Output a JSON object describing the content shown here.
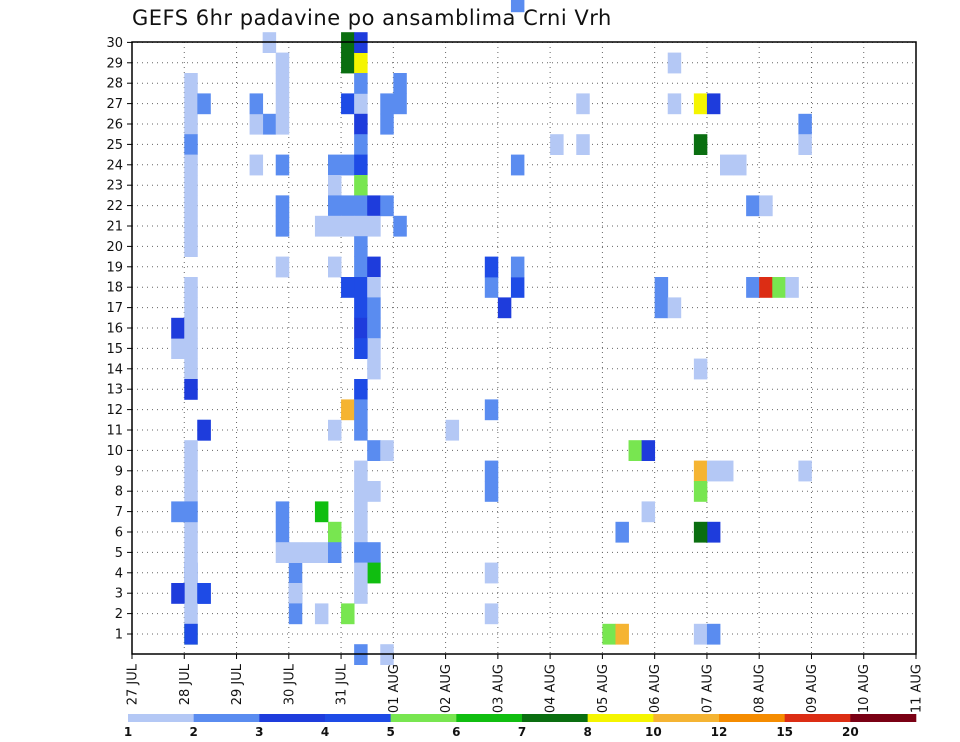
{
  "title": "GEFS 6hr padavine po ansamblima Crni Vrh",
  "chart_data": {
    "type": "heatmap",
    "title": "GEFS 6hr padavine po ansamblima Crni Vrh",
    "x_tick_labels": [
      "27 JUL",
      "28 JUL",
      "29 JUL",
      "30 JUL",
      "31 JUL",
      "01 AUG",
      "02 AUG",
      "03 AUG",
      "04 AUG",
      "05 AUG",
      "06 AUG",
      "07 AUG",
      "08 AUG",
      "09 AUG",
      "10 AUG",
      "11 AUG"
    ],
    "y_tick_labels": [
      "1",
      "2",
      "3",
      "4",
      "5",
      "6",
      "7",
      "8",
      "9",
      "10",
      "11",
      "12",
      "13",
      "14",
      "15",
      "16",
      "17",
      "18",
      "19",
      "20",
      "21",
      "22",
      "23",
      "24",
      "25",
      "26",
      "27",
      "28",
      "29",
      "30"
    ],
    "x_unit": "6-hour step from 27 JUL 00Z",
    "ylim": [
      1,
      30
    ],
    "grid": true,
    "colorbar": {
      "tick_labels": [
        "1",
        "2",
        "3",
        "4",
        "5",
        "6",
        "7",
        "8",
        "10",
        "12",
        "15",
        "20"
      ],
      "levels": [
        1,
        2,
        3,
        4,
        5,
        6,
        7,
        8,
        10,
        12,
        15,
        20
      ],
      "colors": [
        "#b4c8f5",
        "#5a8cf0",
        "#1e3cdc",
        "#1e4be6",
        "#78e650",
        "#10be10",
        "#0a6e10",
        "#f5f500",
        "#f5b432",
        "#f58c00",
        "#dc2d14",
        "#7a0014"
      ]
    },
    "cells": [
      [
        4,
        4,
        1
      ],
      [
        4,
        5,
        0
      ],
      [
        4,
        6,
        0
      ],
      [
        4,
        3,
        0
      ],
      [
        4,
        4,
        0
      ],
      [
        3,
        3,
        2
      ],
      [
        3,
        7,
        1
      ],
      [
        4,
        1,
        4
      ],
      [
        27,
        4,
        0
      ],
      [
        27,
        8,
        1
      ],
      [
        27,
        9,
        1
      ],
      [
        27,
        12,
        1
      ],
      [
        27,
        18,
        1
      ],
      [
        27,
        19,
        3
      ],
      [
        28,
        17,
        2
      ],
      [
        29,
        18,
        3
      ],
      [
        29,
        19,
        1
      ],
      [
        29,
        32,
        1
      ],
      [
        29,
        24,
        1
      ],
      [
        4,
        9,
        0
      ],
      [
        4,
        14,
        0
      ],
      [
        5,
        11,
        0
      ],
      [
        5,
        11,
        1
      ],
      [
        5,
        11,
        2
      ],
      [
        5,
        3,
        2
      ],
      [
        5,
        3,
        3
      ],
      [
        4,
        13,
        2
      ],
      [
        3,
        15,
        0
      ],
      [
        3,
        16,
        2
      ],
      [
        4,
        22,
        0
      ],
      [
        4,
        26,
        0
      ],
      [
        4,
        25,
        1
      ],
      [
        4,
        27,
        0
      ],
      [
        4,
        28,
        0
      ],
      [
        5,
        27,
        1
      ],
      [
        4,
        24,
        0
      ],
      [
        4,
        23,
        0
      ],
      [
        4,
        10,
        0
      ],
      [
        4,
        18,
        0
      ],
      [
        4,
        21,
        0
      ],
      [
        4,
        20,
        0
      ],
      [
        4,
        16,
        0
      ],
      [
        4,
        15,
        0
      ],
      [
        4,
        17,
        0
      ],
      [
        4,
        8,
        0
      ],
      [
        4,
        7,
        1
      ],
      [
        4,
        2,
        0
      ],
      [
        4,
        1,
        3
      ],
      [
        10,
        30,
        0
      ],
      [
        12,
        4,
        1
      ],
      [
        12,
        3,
        1
      ],
      [
        12,
        5,
        0
      ],
      [
        12,
        3,
        0
      ],
      [
        12,
        2,
        1
      ],
      [
        10,
        26,
        1
      ],
      [
        9,
        26,
        0
      ],
      [
        9,
        27,
        1
      ],
      [
        9,
        24,
        0
      ],
      [
        11,
        29,
        0
      ],
      [
        11,
        28,
        0
      ],
      [
        11,
        27,
        0
      ],
      [
        11,
        26,
        0
      ],
      [
        11,
        22,
        0
      ],
      [
        11,
        21,
        0
      ],
      [
        11,
        22,
        1
      ],
      [
        11,
        24,
        1
      ],
      [
        11,
        21,
        1
      ],
      [
        11,
        19,
        0
      ],
      [
        11,
        6,
        1
      ],
      [
        11,
        5,
        0
      ],
      [
        11,
        7,
        1
      ],
      [
        16,
        30,
        6
      ],
      [
        16,
        29,
        6
      ],
      [
        17,
        29,
        7
      ],
      [
        17,
        30,
        2
      ],
      [
        16,
        27,
        3
      ],
      [
        17,
        27,
        0
      ],
      [
        17,
        28,
        1
      ],
      [
        17,
        26,
        2
      ],
      [
        17,
        25,
        1
      ],
      [
        16,
        24,
        1
      ],
      [
        17,
        24,
        3
      ],
      [
        17,
        23,
        4
      ],
      [
        15,
        24,
        1
      ],
      [
        15,
        23,
        0
      ],
      [
        15,
        22,
        1
      ],
      [
        16,
        22,
        1
      ],
      [
        17,
        22,
        1
      ],
      [
        18,
        22,
        2
      ],
      [
        14,
        21,
        0
      ],
      [
        15,
        21,
        0
      ],
      [
        16,
        21,
        0
      ],
      [
        17,
        21,
        0
      ],
      [
        18,
        21,
        0
      ],
      [
        15,
        19,
        0
      ],
      [
        17,
        19,
        1
      ],
      [
        18,
        19,
        2
      ],
      [
        17,
        20,
        1
      ],
      [
        16,
        18,
        3
      ],
      [
        17,
        18,
        3
      ],
      [
        18,
        18,
        0
      ],
      [
        17,
        17,
        3
      ],
      [
        18,
        17,
        1
      ],
      [
        17,
        16,
        2
      ],
      [
        18,
        16,
        1
      ],
      [
        18,
        15,
        0
      ],
      [
        17,
        15,
        3
      ],
      [
        18,
        14,
        0
      ],
      [
        17,
        13,
        3
      ],
      [
        16,
        12,
        8
      ],
      [
        17,
        12,
        1
      ],
      [
        15,
        11,
        0
      ],
      [
        17,
        11,
        1
      ],
      [
        18,
        10,
        1
      ],
      [
        19,
        10,
        0
      ],
      [
        17,
        9,
        0
      ],
      [
        17,
        8,
        0
      ],
      [
        18,
        8,
        0
      ],
      [
        17,
        7,
        0
      ],
      [
        17,
        6,
        0
      ],
      [
        17,
        5,
        1
      ],
      [
        18,
        5,
        1
      ],
      [
        18,
        4,
        5
      ],
      [
        17,
        4,
        0
      ],
      [
        17,
        3,
        0
      ],
      [
        16,
        2,
        4
      ],
      [
        14,
        7,
        5
      ],
      [
        15,
        6,
        4
      ],
      [
        13,
        5,
        0
      ],
      [
        14,
        5,
        0
      ],
      [
        15,
        5,
        1
      ],
      [
        14,
        2,
        0
      ],
      [
        17,
        0,
        1
      ],
      [
        19,
        0,
        0
      ],
      [
        20,
        28,
        1
      ],
      [
        20,
        27,
        1
      ],
      [
        19,
        27,
        1
      ],
      [
        19,
        26,
        1
      ],
      [
        20,
        21,
        1
      ],
      [
        19,
        22,
        1
      ],
      [
        24,
        11,
        0
      ],
      [
        27,
        2,
        0
      ],
      [
        32,
        25,
        0
      ],
      [
        34,
        25,
        0
      ],
      [
        34,
        27,
        0
      ],
      [
        39,
        7,
        0
      ],
      [
        38,
        10,
        4
      ],
      [
        39,
        10,
        2
      ],
      [
        40,
        18,
        1
      ],
      [
        40,
        17,
        1
      ],
      [
        41,
        17,
        0
      ],
      [
        41,
        29,
        0
      ],
      [
        41,
        27,
        0
      ],
      [
        43,
        27,
        7
      ],
      [
        44,
        27,
        2
      ],
      [
        43,
        25,
        6
      ],
      [
        43,
        9,
        8
      ],
      [
        43,
        8,
        4
      ],
      [
        44,
        9,
        0
      ],
      [
        44,
        6,
        2
      ],
      [
        43,
        6,
        6
      ],
      [
        45,
        9,
        0
      ],
      [
        45,
        24,
        0
      ],
      [
        46,
        24,
        0
      ],
      [
        36,
        1,
        4
      ],
      [
        37,
        1,
        8
      ],
      [
        37,
        6,
        1
      ],
      [
        43,
        1,
        0
      ],
      [
        44,
        1,
        1
      ],
      [
        43,
        14,
        0
      ],
      [
        47,
        22,
        1
      ],
      [
        48,
        22,
        0
      ],
      [
        47,
        18,
        1
      ],
      [
        48,
        18,
        10
      ],
      [
        49,
        18,
        4
      ],
      [
        50,
        18,
        0
      ],
      [
        51,
        26,
        1
      ],
      [
        51,
        25,
        0
      ],
      [
        51,
        9,
        0
      ]
    ]
  }
}
